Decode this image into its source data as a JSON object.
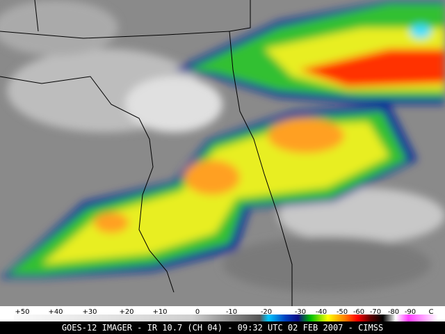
{
  "colorbar": {
    "labels": [
      "+50",
      "+40",
      "+30",
      "+20",
      "+10",
      "0",
      "-10",
      "-20",
      "-30",
      "-40",
      "-50",
      "-60",
      "-70",
      "-80",
      "-90",
      "C"
    ]
  },
  "caption": "GOES-12 IMAGER - IR 10.7 (CH 04) - 09:32 UTC 02 FEB 2007 - CIMSS"
}
